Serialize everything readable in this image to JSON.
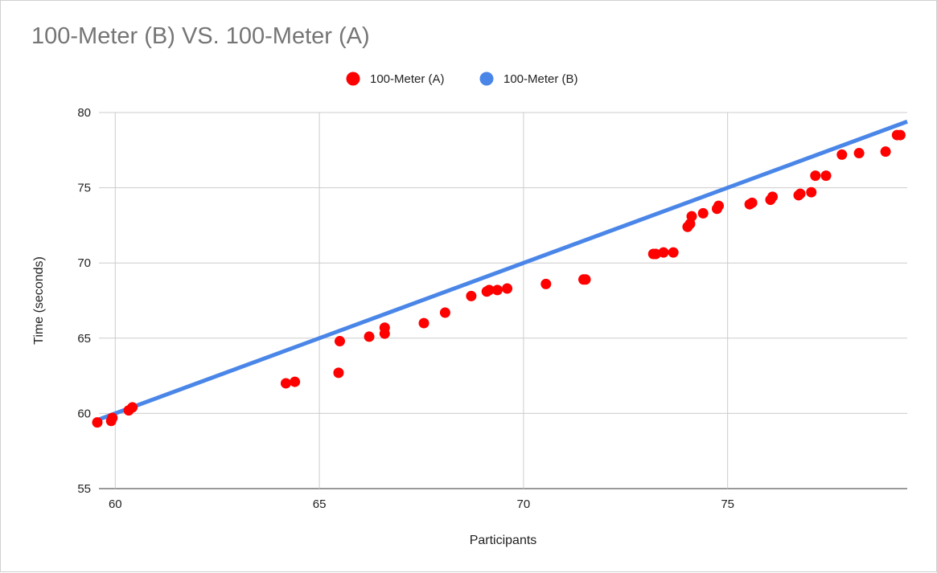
{
  "chart_data": {
    "type": "scatter",
    "title": "100-Meter (B) VS. 100-Meter (A)",
    "xlabel": "Participants",
    "ylabel": "Time (seconds)",
    "xlim": [
      59.6,
      79.4
    ],
    "ylim": [
      55,
      80
    ],
    "xticks": [
      60,
      65,
      70,
      75
    ],
    "yticks": [
      55,
      60,
      65,
      70,
      75,
      80
    ],
    "grid": true,
    "legend_position": "top",
    "series": [
      {
        "name": "100-Meter (A)",
        "kind": "scatter",
        "color": "#ff0000",
        "points": [
          [
            59.56,
            59.4
          ],
          [
            59.9,
            59.5
          ],
          [
            59.93,
            59.7
          ],
          [
            60.33,
            60.2
          ],
          [
            60.42,
            60.4
          ],
          [
            64.18,
            62.0
          ],
          [
            64.4,
            62.1
          ],
          [
            65.47,
            62.7
          ],
          [
            65.5,
            64.8
          ],
          [
            66.22,
            65.1
          ],
          [
            66.6,
            65.3
          ],
          [
            66.6,
            65.7
          ],
          [
            67.56,
            66.0
          ],
          [
            68.08,
            66.7
          ],
          [
            68.72,
            67.8
          ],
          [
            69.1,
            68.1
          ],
          [
            69.16,
            68.2
          ],
          [
            69.36,
            68.2
          ],
          [
            69.6,
            68.3
          ],
          [
            70.55,
            68.6
          ],
          [
            71.47,
            68.9
          ],
          [
            71.52,
            68.9
          ],
          [
            73.18,
            70.6
          ],
          [
            73.24,
            70.6
          ],
          [
            73.43,
            70.7
          ],
          [
            73.67,
            70.7
          ],
          [
            74.02,
            72.4
          ],
          [
            74.08,
            72.6
          ],
          [
            74.12,
            73.1
          ],
          [
            74.4,
            73.3
          ],
          [
            74.74,
            73.6
          ],
          [
            74.78,
            73.8
          ],
          [
            75.54,
            73.9
          ],
          [
            75.6,
            74.0
          ],
          [
            76.05,
            74.2
          ],
          [
            76.1,
            74.4
          ],
          [
            76.74,
            74.5
          ],
          [
            76.78,
            74.6
          ],
          [
            77.05,
            74.7
          ],
          [
            77.15,
            75.8
          ],
          [
            77.41,
            75.8
          ],
          [
            77.8,
            77.2
          ],
          [
            78.22,
            77.3
          ],
          [
            78.87,
            77.4
          ],
          [
            79.15,
            78.5
          ],
          [
            79.23,
            78.5
          ]
        ]
      },
      {
        "name": "100-Meter (B)",
        "kind": "line",
        "color": "#4a86e8",
        "points": [
          [
            59.4,
            59.4
          ],
          [
            79.4,
            79.4
          ]
        ]
      }
    ]
  }
}
